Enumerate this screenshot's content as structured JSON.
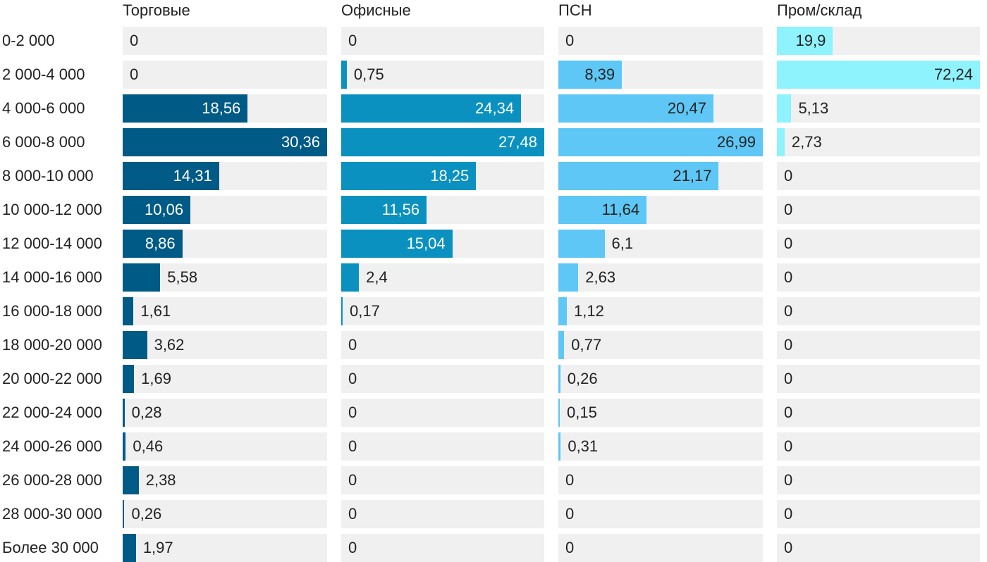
{
  "colors": {
    "track": "#f0f0f0",
    "series": [
      "#005a86",
      "#0a91c0",
      "#5ec7f5",
      "#8ff3fd"
    ]
  },
  "chart_data": {
    "type": "bar",
    "orientation": "horizontal",
    "grid": false,
    "categories": [
      "0-2 000",
      "2 000-4 000",
      "4 000-6 000",
      "6 000-8 000",
      "8 000-10 000",
      "10 000-12 000",
      "12 000-14 000",
      "14 000-16 000",
      "16 000-18 000",
      "18 000-20 000",
      "20 000-22 000",
      "22 000-24 000",
      "24 000-26 000",
      "26 000-28 000",
      "28 000-30 000",
      "Более 30 000"
    ],
    "series": [
      {
        "name": "Торговые",
        "labels": [
          "0",
          "0",
          "18,56",
          "30,36",
          "14,31",
          "10,06",
          "8,86",
          "5,58",
          "1,61",
          "3,62",
          "1,69",
          "0,28",
          "0,46",
          "2,38",
          "0,26",
          "1,97"
        ],
        "values": [
          0,
          0,
          18.56,
          30.36,
          14.31,
          10.06,
          8.86,
          5.58,
          1.61,
          3.62,
          1.69,
          0.28,
          0.46,
          2.38,
          0.26,
          1.97
        ],
        "xlim": [
          0,
          30.36
        ]
      },
      {
        "name": "Офисные",
        "labels": [
          "0",
          "0,75",
          "24,34",
          "27,48",
          "18,25",
          "11,56",
          "15,04",
          "2,4",
          "0,17",
          "0",
          "0",
          "0",
          "0",
          "0",
          "0",
          "0"
        ],
        "values": [
          0,
          0.75,
          24.34,
          27.48,
          18.25,
          11.56,
          15.04,
          2.4,
          0.17,
          0,
          0,
          0,
          0,
          0,
          0,
          0
        ],
        "xlim": [
          0,
          27.48
        ]
      },
      {
        "name": "ПСН",
        "labels": [
          "0",
          "8,39",
          "20,47",
          "26,99",
          "21,17",
          "11,64",
          "6,1",
          "2,63",
          "1,12",
          "0,77",
          "0,26",
          "0,15",
          "0,31",
          "0",
          "0",
          "0"
        ],
        "values": [
          0,
          8.39,
          20.47,
          26.99,
          21.17,
          11.64,
          6.1,
          2.63,
          1.12,
          0.77,
          0.26,
          0.15,
          0.31,
          0,
          0,
          0
        ],
        "xlim": [
          0,
          26.99
        ]
      },
      {
        "name": "Пром/склад",
        "labels": [
          "19,9",
          "72,24",
          "5,13",
          "2,73",
          "0",
          "0",
          "0",
          "0",
          "0",
          "0",
          "0",
          "0",
          "0",
          "0",
          "0",
          "0"
        ],
        "values": [
          19.9,
          72.24,
          5.13,
          2.73,
          0,
          0,
          0,
          0,
          0,
          0,
          0,
          0,
          0,
          0,
          0,
          0
        ],
        "xlim": [
          0,
          72.24
        ]
      }
    ]
  }
}
